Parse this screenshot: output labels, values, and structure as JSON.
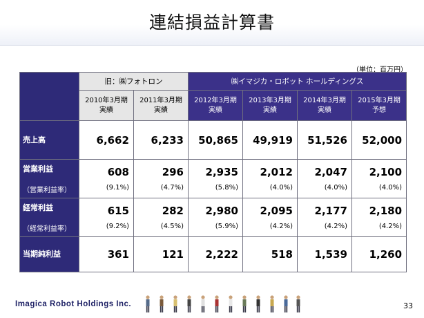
{
  "title": "連結損益計算書",
  "unit": "（単位：百万円）",
  "header": {
    "old_company": "旧：㈱フォトロン",
    "new_company": "㈱イマジカ・ロボット ホールディングス",
    "periods": [
      {
        "year": "2010年3月期",
        "kind": "実績"
      },
      {
        "year": "2011年3月期",
        "kind": "実績"
      },
      {
        "year": "2012年3月期",
        "kind": "実績"
      },
      {
        "year": "2013年3月期",
        "kind": "実績"
      },
      {
        "year": "2014年3月期",
        "kind": "実績"
      },
      {
        "year": "2015年3月期",
        "kind": "予想"
      }
    ]
  },
  "rows": {
    "sales": {
      "label": "売上高",
      "values": [
        "6,662",
        "6,233",
        "50,865",
        "49,919",
        "51,526",
        "52,000"
      ]
    },
    "operating": {
      "label": "営業利益",
      "sub_label": "（営業利益率）",
      "values": [
        "608",
        "296",
        "2,935",
        "2,012",
        "2,047",
        "2,100"
      ],
      "rates": [
        "(9.1%)",
        "(4.7%)",
        "(5.8%)",
        "(4.0%)",
        "(4.0%)",
        "(4.0%)"
      ]
    },
    "ordinary": {
      "label": "経常利益",
      "sub_label": "（経常利益率）",
      "values": [
        "615",
        "282",
        "2,980",
        "2,095",
        "2,177",
        "2,180"
      ],
      "rates": [
        "(9.2%)",
        "(4.5%)",
        "(5.9%)",
        "(4.2%)",
        "(4.2%)",
        "(4.2%)"
      ]
    },
    "net": {
      "label": "当期純利益",
      "values": [
        "361",
        "121",
        "2,222",
        "518",
        "1,539",
        "1,260"
      ]
    }
  },
  "footer": {
    "company": "Imagica Robot Holdings Inc.",
    "page": "33"
  },
  "colors": {
    "navy": "#2e2a78",
    "header_purple": "#3b3189",
    "old_grey": "#e6e6e6"
  }
}
